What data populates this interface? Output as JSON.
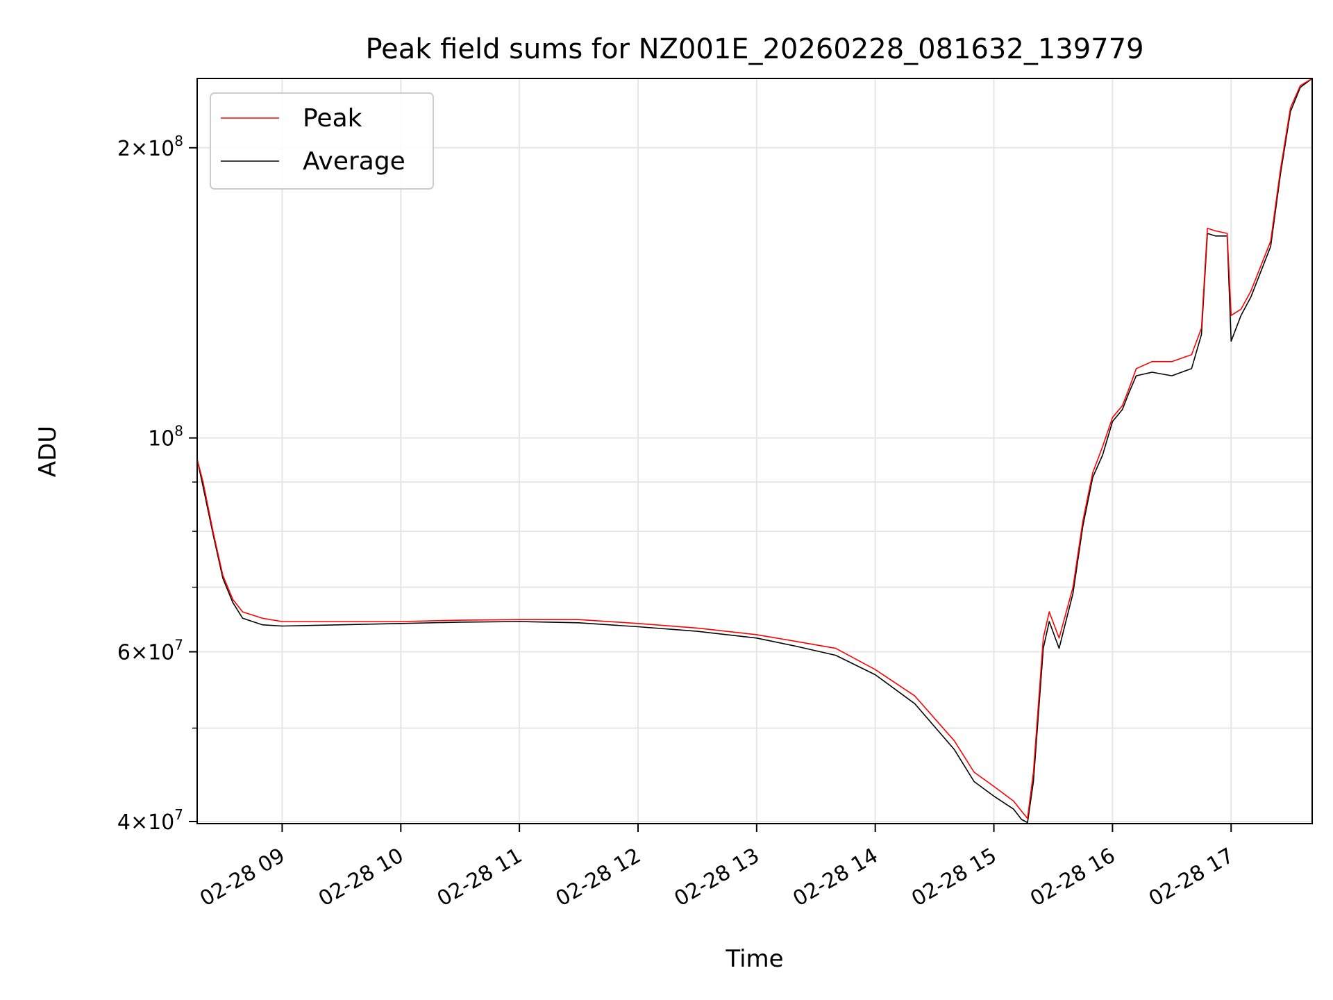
{
  "chart_data": {
    "type": "line",
    "title": "Peak field sums for NZ001E_20260228_081632_139779",
    "xlabel": "Time",
    "ylabel": "ADU",
    "yscale": "log",
    "grid": true,
    "legend_position": "top-left",
    "xlim": [
      "2026-02-28 08:17",
      "2026-02-28 17:41"
    ],
    "ylim": [
      39800000,
      236000000
    ],
    "x_ticks": [
      "02-28 09",
      "02-28 10",
      "02-28 11",
      "02-28 12",
      "02-28 13",
      "02-28 14",
      "02-28 15",
      "02-28 16",
      "02-28 17"
    ],
    "y_tick_labels": [
      {
        "value": 40000000,
        "mantissa": "4",
        "exponent": "7"
      },
      {
        "value": 60000000,
        "mantissa": "6",
        "exponent": "7"
      },
      {
        "value": 100000000,
        "mantissa": "",
        "exponent": "8"
      },
      {
        "value": 200000000,
        "mantissa": "2",
        "exponent": "8"
      }
    ],
    "y_minor_ticks": [
      50000000,
      70000000,
      80000000,
      90000000
    ],
    "x": [
      "2026-02-28 08:17",
      "2026-02-28 08:20",
      "2026-02-28 08:25",
      "2026-02-28 08:30",
      "2026-02-28 08:35",
      "2026-02-28 08:40",
      "2026-02-28 08:50",
      "2026-02-28 09:00",
      "2026-02-28 09:30",
      "2026-02-28 10:00",
      "2026-02-28 10:30",
      "2026-02-28 11:00",
      "2026-02-28 11:30",
      "2026-02-28 12:00",
      "2026-02-28 12:30",
      "2026-02-28 13:00",
      "2026-02-28 13:20",
      "2026-02-28 13:40",
      "2026-02-28 14:00",
      "2026-02-28 14:20",
      "2026-02-28 14:40",
      "2026-02-28 14:50",
      "2026-02-28 15:00",
      "2026-02-28 15:10",
      "2026-02-28 15:14",
      "2026-02-28 15:17",
      "2026-02-28 15:20",
      "2026-02-28 15:25",
      "2026-02-28 15:28",
      "2026-02-28 15:33",
      "2026-02-28 15:40",
      "2026-02-28 15:45",
      "2026-02-28 15:50",
      "2026-02-28 15:55",
      "2026-02-28 16:00",
      "2026-02-28 16:05",
      "2026-02-28 16:08",
      "2026-02-28 16:12",
      "2026-02-28 16:20",
      "2026-02-28 16:30",
      "2026-02-28 16:40",
      "2026-02-28 16:45",
      "2026-02-28 16:48",
      "2026-02-28 16:52",
      "2026-02-28 16:58",
      "2026-02-28 17:00",
      "2026-02-28 17:05",
      "2026-02-28 17:10",
      "2026-02-28 17:20",
      "2026-02-28 17:25",
      "2026-02-28 17:30",
      "2026-02-28 17:35",
      "2026-02-28 17:41"
    ],
    "series": [
      {
        "name": "Peak",
        "color": "#ff0000",
        "values": [
          95000000,
          90000000,
          80000000,
          72000000,
          68000000,
          66000000,
          65000000,
          64500000,
          64500000,
          64500000,
          64700000,
          64800000,
          64800000,
          64200000,
          63500000,
          62500000,
          61500000,
          60500000,
          57500000,
          54000000,
          48500000,
          45000000,
          43500000,
          42000000,
          41000000,
          40300000,
          45000000,
          62000000,
          66000000,
          62000000,
          70000000,
          82000000,
          92000000,
          98000000,
          105000000,
          108000000,
          112000000,
          118000000,
          120000000,
          120000000,
          122000000,
          130000000,
          165000000,
          164000000,
          163000000,
          134000000,
          136000000,
          142000000,
          160000000,
          190000000,
          220000000,
          232000000,
          236000000
        ]
      },
      {
        "name": "Average",
        "color": "#000000",
        "values": [
          95000000,
          89000000,
          79500000,
          71500000,
          67500000,
          65000000,
          64000000,
          63800000,
          64000000,
          64200000,
          64400000,
          64500000,
          64300000,
          63700000,
          63000000,
          62000000,
          60800000,
          59500000,
          56800000,
          53000000,
          47500000,
          44000000,
          42500000,
          41200000,
          40200000,
          39900000,
          44000000,
          60500000,
          64500000,
          60500000,
          69000000,
          81000000,
          91000000,
          96000000,
          104000000,
          107000000,
          111000000,
          116000000,
          117000000,
          116000000,
          118000000,
          128000000,
          163000000,
          162000000,
          162000000,
          126000000,
          134000000,
          140000000,
          158000000,
          188000000,
          218000000,
          231000000,
          236000000
        ]
      }
    ]
  }
}
